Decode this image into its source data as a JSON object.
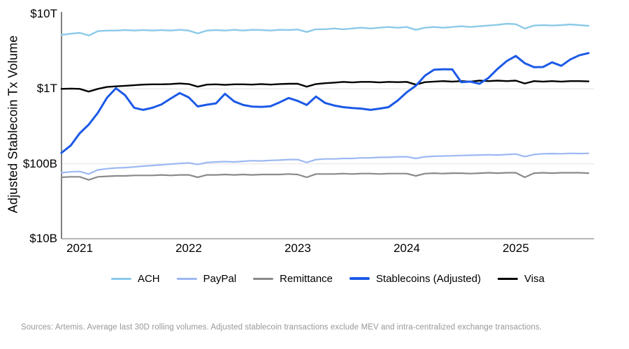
{
  "y_axis": {
    "title": "Adjusted Stablecoin Tx Volume",
    "ticks": [
      "$10T",
      "$1T",
      "$100B",
      "$10B"
    ]
  },
  "x_axis": {
    "ticks": [
      "2021",
      "2022",
      "2023",
      "2024",
      "2025"
    ]
  },
  "footer": {
    "text": "Sources: Artemis. Average last 30D rolling volumes. Adjusted stablecoin transactions exclude MEV and intra-centralized exchange transactions."
  },
  "chart_data": {
    "type": "line",
    "title": "",
    "ylabel": "Adjusted Stablecoin Tx Volume",
    "xlabel": "",
    "y_scale": "log",
    "y_unit": "USD billions",
    "ylim_billions": [
      10,
      10000
    ],
    "y_tick_labels": [
      "$10B",
      "$100B",
      "$1T",
      "$10T"
    ],
    "x_tick_labels": [
      "2021",
      "2022",
      "2023",
      "2024",
      "2025"
    ],
    "x_unit": "decimal_year",
    "grid": "horizontal-light",
    "legend_position": "bottom",
    "x": [
      2020.833,
      2020.917,
      2021.0,
      2021.083,
      2021.167,
      2021.25,
      2021.333,
      2021.417,
      2021.5,
      2021.583,
      2021.667,
      2021.75,
      2021.833,
      2021.917,
      2022.0,
      2022.083,
      2022.167,
      2022.25,
      2022.333,
      2022.417,
      2022.5,
      2022.583,
      2022.667,
      2022.75,
      2022.833,
      2022.917,
      2023.0,
      2023.083,
      2023.167,
      2023.25,
      2023.333,
      2023.417,
      2023.5,
      2023.583,
      2023.667,
      2023.75,
      2023.833,
      2023.917,
      2024.0,
      2024.083,
      2024.167,
      2024.25,
      2024.333,
      2024.417,
      2024.5,
      2024.583,
      2024.667,
      2024.75,
      2024.833,
      2024.917,
      2025.0,
      2025.083,
      2025.167,
      2025.25,
      2025.333,
      2025.417,
      2025.5,
      2025.583,
      2025.667
    ],
    "series": [
      {
        "name": "ACH",
        "color": "#8CCAE8",
        "values": [
          5250,
          5450,
          5600,
          5150,
          5900,
          6000,
          6000,
          6100,
          6000,
          6100,
          6000,
          6100,
          6000,
          6150,
          6000,
          5500,
          6000,
          6100,
          6000,
          6150,
          6000,
          6150,
          6100,
          6000,
          6150,
          6100,
          6200,
          5750,
          6250,
          6250,
          6400,
          6250,
          6400,
          6550,
          6400,
          6550,
          6700,
          6550,
          6700,
          6150,
          6550,
          6700,
          6550,
          6700,
          6850,
          6700,
          6850,
          7000,
          7150,
          7400,
          7300,
          6400,
          7000,
          7100,
          7000,
          7100,
          7250,
          7100,
          6950
        ]
      },
      {
        "name": "PayPal",
        "color": "#9DB8F2",
        "values": [
          76,
          78,
          79,
          73,
          83,
          86,
          88,
          89,
          91,
          93,
          95,
          97,
          99,
          101,
          103,
          98,
          104,
          106,
          107,
          106,
          108,
          110,
          109,
          111,
          112,
          114,
          114,
          104,
          114,
          116,
          116,
          118,
          118,
          120,
          120,
          122,
          122,
          124,
          124,
          118,
          124,
          126,
          127,
          128,
          129,
          130,
          131,
          132,
          131,
          133,
          135,
          125,
          133,
          136,
          137,
          136,
          138,
          137,
          138
        ]
      },
      {
        "name": "Remittance",
        "color": "#8A8A8A",
        "values": [
          66,
          67,
          67,
          61,
          67,
          68,
          69,
          69,
          70,
          70,
          70,
          71,
          70,
          71,
          71,
          66,
          71,
          71,
          72,
          71,
          72,
          71,
          72,
          72,
          72,
          73,
          72,
          66,
          73,
          73,
          73,
          74,
          73,
          74,
          74,
          73,
          74,
          74,
          74,
          69,
          74,
          75,
          74,
          75,
          75,
          74,
          75,
          76,
          75,
          76,
          76,
          66,
          75,
          76,
          75,
          76,
          76,
          76,
          75
        ]
      },
      {
        "name": "Stablecoins (Adjusted)",
        "color": "#1B59E6",
        "values": [
          140,
          175,
          255,
          333,
          480,
          760,
          1020,
          820,
          560,
          525,
          560,
          620,
          740,
          880,
          770,
          583,
          615,
          640,
          860,
          680,
          610,
          580,
          575,
          585,
          660,
          755,
          690,
          610,
          790,
          650,
          600,
          570,
          555,
          545,
          525,
          545,
          570,
          700,
          900,
          1100,
          1500,
          1800,
          1830,
          1820,
          1230,
          1250,
          1170,
          1400,
          1850,
          2350,
          2750,
          2200,
          1950,
          1960,
          2260,
          2030,
          2470,
          2810,
          3000
        ]
      },
      {
        "name": "Visa",
        "color": "#000000",
        "values": [
          1000,
          1010,
          1000,
          920,
          1000,
          1060,
          1080,
          1100,
          1120,
          1140,
          1150,
          1150,
          1160,
          1180,
          1160,
          1070,
          1140,
          1150,
          1130,
          1150,
          1150,
          1140,
          1160,
          1140,
          1160,
          1170,
          1170,
          1070,
          1160,
          1190,
          1210,
          1240,
          1220,
          1240,
          1240,
          1220,
          1240,
          1230,
          1240,
          1140,
          1230,
          1250,
          1270,
          1250,
          1270,
          1250,
          1290,
          1270,
          1290,
          1270,
          1290,
          1180,
          1270,
          1250,
          1270,
          1250,
          1270,
          1270,
          1260
        ]
      }
    ]
  }
}
